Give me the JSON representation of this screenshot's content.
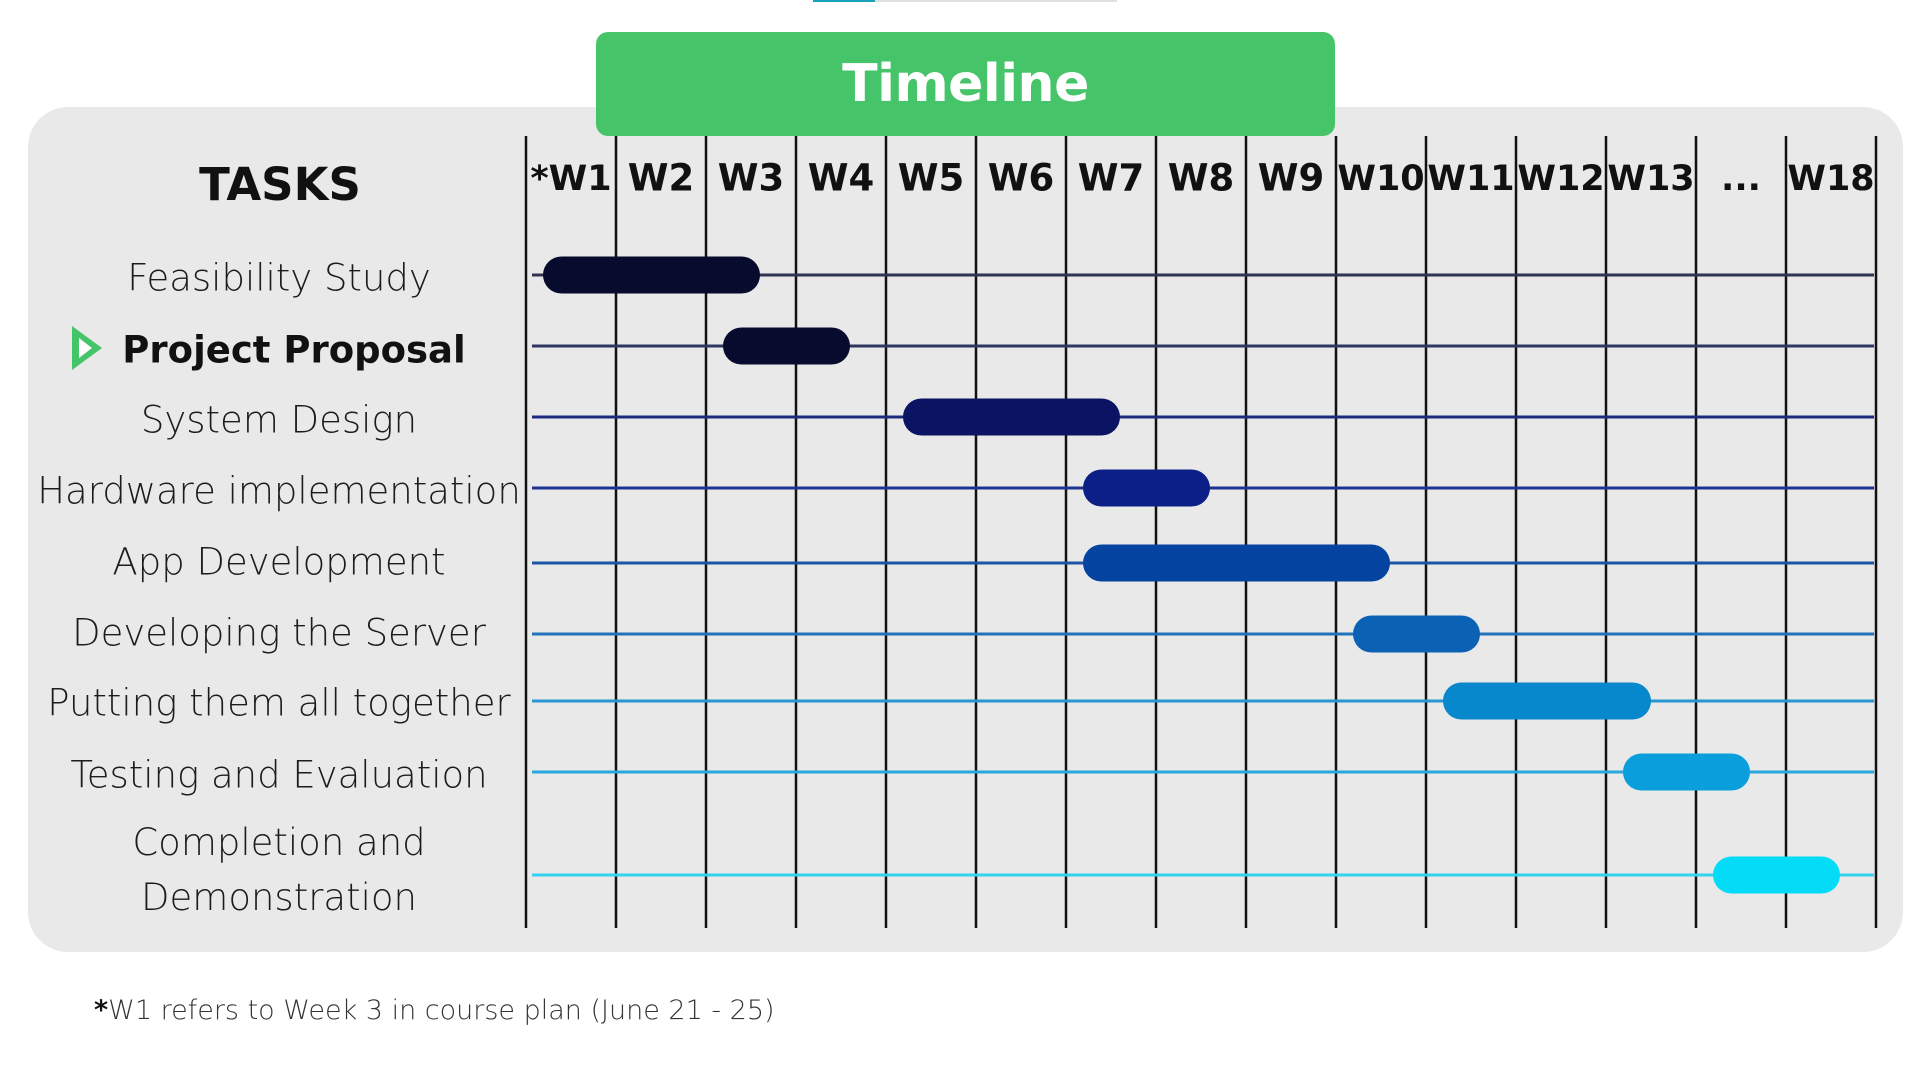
{
  "header": {
    "title": "Timeline"
  },
  "tasks_heading": "TASKS",
  "footnote": {
    "mark": "*",
    "text": "W1 refers to Week 3 in course plan (June 21 - 25)"
  },
  "colors": {
    "banner": "#45c46a",
    "panel": "#e9e9e9",
    "current_marker": "#45c46a"
  },
  "chart_data": {
    "type": "gantt",
    "columns": [
      "*W1",
      "W2",
      "W3",
      "W4",
      "W5",
      "W6",
      "W7",
      "W8",
      "W9",
      "W10",
      "W11",
      "W12",
      "W13",
      "...",
      "W18"
    ],
    "current_task": "Project Proposal",
    "tasks": [
      {
        "name": "Feasibility Study",
        "start": 1,
        "end": 3.6,
        "color": "#070b2e"
      },
      {
        "name": "Project Proposal",
        "start": 3,
        "end": 4.6,
        "color": "#070b2e"
      },
      {
        "name": "System Design",
        "start": 5,
        "end": 7.6,
        "color": "#0b1463"
      },
      {
        "name": "Hardware implementation",
        "start": 7,
        "end": 8.6,
        "color": "#0c1f86"
      },
      {
        "name": "App Development",
        "start": 7,
        "end": 10.6,
        "color": "#0543a0"
      },
      {
        "name": "Developing the Server",
        "start": 10,
        "end": 11.6,
        "color": "#0b62b5"
      },
      {
        "name": "Putting them all together",
        "start": 11,
        "end": 13.5,
        "color": "#0788cd"
      },
      {
        "name": "Testing and Evaluation",
        "start": 13,
        "end": 14.6,
        "color": "#0a9fdc"
      },
      {
        "name": "Completion and Demonstration",
        "start": 14,
        "end": 15.6,
        "color": "#03dbf7"
      }
    ],
    "row_line_colors": [
      "#2f3450",
      "#2f3660",
      "#1d2a80",
      "#1d3591",
      "#1d55a6",
      "#2373bb",
      "#2896d1",
      "#28a8dd",
      "#33d2ee"
    ]
  }
}
